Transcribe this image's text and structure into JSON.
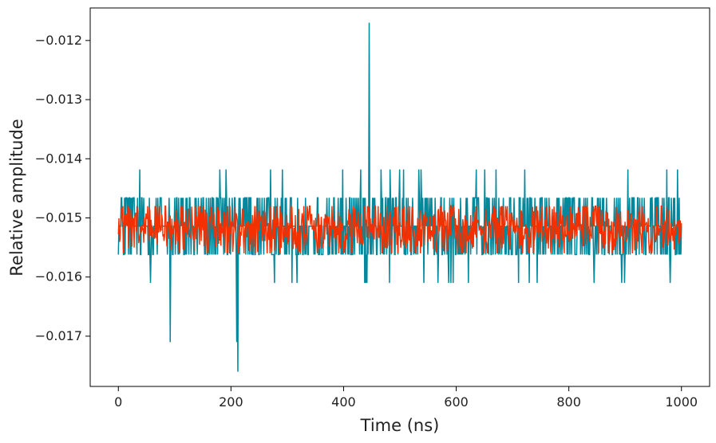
{
  "chart_data": {
    "type": "line",
    "title": "",
    "xlabel": "Time (ns)",
    "ylabel": "Relative amplitude",
    "xlim": [
      -50,
      1050
    ],
    "ylim": [
      -0.01785,
      -0.01145
    ],
    "xticks": [
      0,
      200,
      400,
      600,
      800,
      1000
    ],
    "xtick_labels": [
      "0",
      "200",
      "400",
      "600",
      "800",
      "1000"
    ],
    "yticks": [
      -0.012,
      -0.013,
      -0.014,
      -0.015,
      -0.016,
      -0.017
    ],
    "ytick_labels": [
      "−0.012",
      "−0.013",
      "−0.014",
      "−0.015",
      "−0.016",
      "−0.017"
    ],
    "grid": false,
    "legend": "none",
    "series": [
      {
        "color": "#00889c",
        "x_start": 0,
        "x_end": 1000,
        "n_points": 1000,
        "mean": -0.01514,
        "quantization_step": 0.00048,
        "range": [
          -0.0176,
          -0.0117
        ],
        "notable_points": [
          {
            "x": 445,
            "y": -0.0117
          },
          {
            "x": 212,
            "y": -0.0176
          },
          {
            "x": 210,
            "y": -0.0171
          },
          {
            "x": 92,
            "y": -0.0171
          }
        ]
      },
      {
        "color": "#f23000",
        "x_start": 0,
        "x_end": 1000,
        "n_points": 1000,
        "mean": -0.01518,
        "range": [
          -0.0156,
          -0.0148
        ]
      }
    ]
  }
}
